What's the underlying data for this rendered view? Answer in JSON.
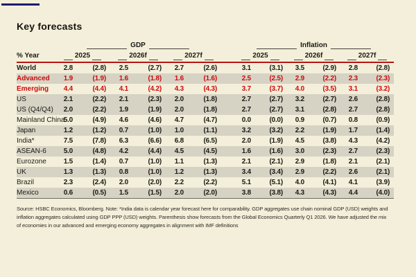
{
  "page": {
    "title": "Key forecasts",
    "source_note": "Source: HSBC Economics, Bloomberg. Note: *India data is calendar year forecast here for comparability. GDP aggregates use chain nominal GDP (USD) weights and inflation aggregates calculated using GDP PPP (USD) weights. Parenthesis show forecasts from the Global Economics Quarterly Q1 2026. We have adjusted the mix of economies in our advanced and emerging economy aggregates in alignment with IMF definitions"
  },
  "colors": {
    "page_background": "#f4efda",
    "zebra_band": "#d6d3c4",
    "emphasis_red": "#cf0a0a",
    "header_rule_red": "#b81414",
    "accent_navy": "#1b1b6e"
  },
  "table": {
    "row_header_label": "% Year",
    "groups": [
      {
        "label": "GDP"
      },
      {
        "label": "Inflation"
      }
    ],
    "years": [
      "2025",
      "2026f",
      "2027f"
    ],
    "rows": [
      {
        "label": "World",
        "band": "cream",
        "red": false,
        "bold": true,
        "gdp": [
          "2.8",
          "(2.8)",
          "2.5",
          "(2.7)",
          "2.7",
          "(2.6)"
        ],
        "inflation": [
          "3.1",
          "(3.1)",
          "3.5",
          "(2.9)",
          "2.8",
          "(2.8)"
        ]
      },
      {
        "label": "Advanced",
        "band": "gray",
        "red": true,
        "bold": true,
        "gdp": [
          "1.9",
          "(1.9)",
          "1.6",
          "(1.8)",
          "1.6",
          "(1.6)"
        ],
        "inflation": [
          "2.5",
          "(2.5)",
          "2.9",
          "(2.2)",
          "2.3",
          "(2.3)"
        ]
      },
      {
        "label": "Emerging",
        "band": "cream",
        "red": true,
        "bold": true,
        "gdp": [
          "4.4",
          "(4.4)",
          "4.1",
          "(4.2)",
          "4.3",
          "(4.3)"
        ],
        "inflation": [
          "3.7",
          "(3.7)",
          "4.0",
          "(3.5)",
          "3.1",
          "(3.2)"
        ]
      },
      {
        "label": "US",
        "band": "gray",
        "red": false,
        "bold": false,
        "gdp": [
          "2.1",
          "(2.2)",
          "2.1",
          "(2.3)",
          "2.0",
          "(1.8)"
        ],
        "inflation": [
          "2.7",
          "(2.7)",
          "3.2",
          "(2.7)",
          "2.6",
          "(2.8)"
        ]
      },
      {
        "label": "US (Q4/Q4)",
        "band": "gray",
        "red": false,
        "bold": false,
        "gdp": [
          "2.0",
          "(2.2)",
          "1.9",
          "(1.9)",
          "2.0",
          "(1.8)"
        ],
        "inflation": [
          "2.7",
          "(2.7)",
          "3.1",
          "(2.8)",
          "2.7",
          "(2.8)"
        ]
      },
      {
        "label": "Mainland China",
        "band": "cream",
        "red": false,
        "bold": false,
        "gdp": [
          "5.0",
          "(4.9)",
          "4.6",
          "(4.6)",
          "4.7",
          "(4.7)"
        ],
        "inflation": [
          "0.0",
          "(0.0)",
          "0.9",
          "(0.7)",
          "0.8",
          "(0.9)"
        ]
      },
      {
        "label": "Japan",
        "band": "gray",
        "red": false,
        "bold": false,
        "gdp": [
          "1.2",
          "(1.2)",
          "0.7",
          "(1.0)",
          "1.0",
          "(1.1)"
        ],
        "inflation": [
          "3.2",
          "(3.2)",
          "2.2",
          "(1.9)",
          "1.7",
          "(1.4)"
        ]
      },
      {
        "label": "India*",
        "band": "cream",
        "red": false,
        "bold": false,
        "gdp": [
          "7.5",
          "(7.8)",
          "6.3",
          "(6.6)",
          "6.8",
          "(6.5)"
        ],
        "inflation": [
          "2.0",
          "(1.9)",
          "4.5",
          "(3.8)",
          "4.3",
          "(4.2)"
        ]
      },
      {
        "label": "ASEAN-6",
        "band": "gray",
        "red": false,
        "bold": false,
        "gdp": [
          "5.0",
          "(4.8)",
          "4.2",
          "(4.4)",
          "4.5",
          "(4.5)"
        ],
        "inflation": [
          "1.6",
          "(1.6)",
          "3.0",
          "(2.3)",
          "2.7",
          "(2.3)"
        ]
      },
      {
        "label": "Eurozone",
        "band": "cream",
        "red": false,
        "bold": false,
        "gdp": [
          "1.5",
          "(1.4)",
          "0.7",
          "(1.0)",
          "1.1",
          "(1.3)"
        ],
        "inflation": [
          "2.1",
          "(2.1)",
          "2.9",
          "(1.8)",
          "2.1",
          "(2.1)"
        ]
      },
      {
        "label": "UK",
        "band": "gray",
        "red": false,
        "bold": false,
        "gdp": [
          "1.3",
          "(1.3)",
          "0.8",
          "(1.0)",
          "1.2",
          "(1.3)"
        ],
        "inflation": [
          "3.4",
          "(3.4)",
          "2.9",
          "(2.2)",
          "2.6",
          "(2.1)"
        ]
      },
      {
        "label": "Brazil",
        "band": "cream",
        "red": false,
        "bold": false,
        "gdp": [
          "2.3",
          "(2.4)",
          "2.0",
          "(2.0)",
          "2.2",
          "(2.2)"
        ],
        "inflation": [
          "5.1",
          "(5.1)",
          "4.0",
          "(4.1)",
          "4.1",
          "(3.9)"
        ]
      },
      {
        "label": "Mexico",
        "band": "gray",
        "red": false,
        "bold": false,
        "gdp": [
          "0.6",
          "(0.5)",
          "1.5",
          "(1.5)",
          "2.0",
          "(2.0)"
        ],
        "inflation": [
          "3.8",
          "(3.8)",
          "4.3",
          "(4.3)",
          "4.4",
          "(4.0)"
        ]
      }
    ]
  }
}
